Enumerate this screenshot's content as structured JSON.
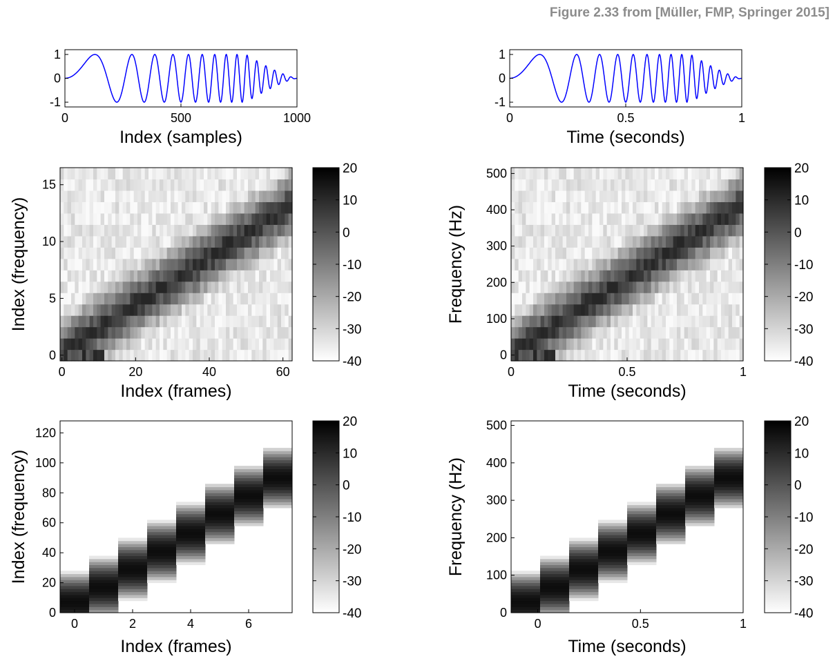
{
  "figure_caption": "Figure 2.33 from [Müller, FMP, Springer 2015]",
  "chart_data": [
    {
      "id": "waveform-samples",
      "type": "line",
      "title": "",
      "xlabel": "Index (samples)",
      "ylabel": "",
      "xlim": [
        0,
        1000
      ],
      "ylim": [
        -1.2,
        1.2
      ],
      "xticks": [
        "0",
        "500",
        "1000"
      ],
      "yticks": [
        "1",
        "0",
        "-1"
      ],
      "series": [
        {
          "color": "#0000ff",
          "description_values": {
            "x_start": 0,
            "x_end": 1000,
            "amplitude": 1,
            "chirp_f_start": 0,
            "chirp_f_end": 500,
            "envelope_decay_start": 780
          }
        }
      ]
    },
    {
      "id": "waveform-time",
      "type": "line",
      "title": "",
      "xlabel": "Time (seconds)",
      "ylabel": "",
      "xlim": [
        0,
        1
      ],
      "ylim": [
        -1.2,
        1.2
      ],
      "xticks": [
        "0",
        "0.5",
        "1"
      ],
      "yticks": [
        "1",
        "0",
        "-1"
      ],
      "series": [
        {
          "color": "#0000ff",
          "description_values": {
            "x_start": 0,
            "x_end": 1,
            "amplitude": 1,
            "chirp_f_start": 0,
            "chirp_f_end": 500,
            "envelope_decay_start": 0.78
          }
        }
      ]
    },
    {
      "id": "spectrogram-index-64",
      "type": "heatmap",
      "title": "",
      "xlabel": "Index (frames)",
      "ylabel": "Index (frequency)",
      "xlim": [
        -0.5,
        62.5
      ],
      "ylim": [
        -0.5,
        16.5
      ],
      "xticks": [
        "0",
        "20",
        "40",
        "60"
      ],
      "yticks": [
        "0",
        "5",
        "10",
        "15"
      ],
      "n_frames": 63,
      "n_bins": 17,
      "ridge": {
        "bin_start": 0.3,
        "bin_end": 13.2
      },
      "colorbar": {
        "min": -40,
        "max": 20,
        "ticks": [
          "20",
          "10",
          "0",
          "-10",
          "-20",
          "-30",
          "-40"
        ]
      }
    },
    {
      "id": "spectrogram-physical-64",
      "type": "heatmap",
      "title": "",
      "xlabel": "Time (seconds)",
      "ylabel": "Frequency (Hz)",
      "xlim": [
        0,
        1
      ],
      "ylim": [
        -16,
        516
      ],
      "xticks": [
        "0",
        "0.5",
        "1"
      ],
      "yticks": [
        "0",
        "100",
        "200",
        "300",
        "400",
        "500"
      ],
      "n_frames": 63,
      "n_bins": 17,
      "ridge": {
        "freq_start": 10,
        "freq_end": 420
      },
      "colorbar": {
        "min": -40,
        "max": 20,
        "ticks": [
          "20",
          "10",
          "0",
          "-10",
          "-20",
          "-30",
          "-40"
        ]
      }
    },
    {
      "id": "spectrogram-index-256",
      "type": "heatmap",
      "title": "",
      "xlabel": "Index (frames)",
      "ylabel": "Index (frequency)",
      "xlim": [
        -0.5,
        7.5
      ],
      "ylim": [
        0,
        128
      ],
      "xticks": [
        "0",
        "2",
        "4",
        "6"
      ],
      "yticks": [
        "0",
        "20",
        "40",
        "60",
        "80",
        "100",
        "120"
      ],
      "n_frames": 8,
      "n_bins": 129,
      "peaks": [
        7,
        17,
        29,
        41,
        53,
        66,
        78,
        90
      ],
      "colorbar": {
        "min": -40,
        "max": 20,
        "ticks": [
          "20",
          "10",
          "0",
          "-10",
          "-20",
          "-30",
          "-40"
        ]
      }
    },
    {
      "id": "spectrogram-physical-256",
      "type": "heatmap",
      "title": "",
      "xlabel": "Time (seconds)",
      "ylabel": "Frequency (Hz)",
      "xlim": [
        -0.13,
        1.0
      ],
      "ylim": [
        0,
        512
      ],
      "xticks": [
        "0",
        "0.5",
        "1"
      ],
      "yticks": [
        "0",
        "100",
        "200",
        "300",
        "400",
        "500"
      ],
      "n_frames": 8,
      "n_bins": 129,
      "peaks": [
        28,
        68,
        116,
        164,
        212,
        264,
        312,
        360
      ],
      "colorbar": {
        "min": -40,
        "max": 20,
        "ticks": [
          "20",
          "10",
          "0",
          "-10",
          "-20",
          "-30",
          "-40"
        ]
      }
    }
  ]
}
